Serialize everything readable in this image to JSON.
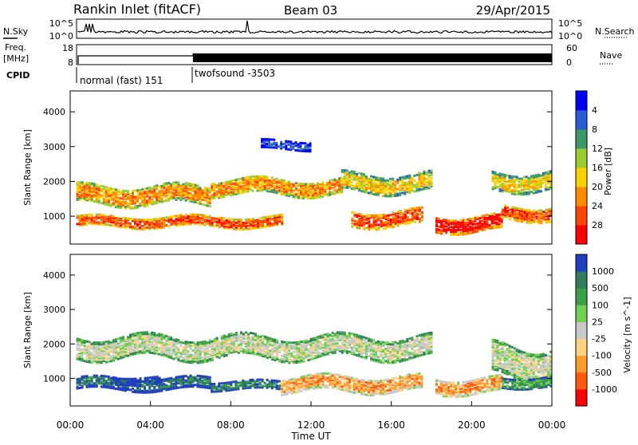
{
  "header": {
    "title": "Rankin Inlet (fitACF)",
    "beam": "Beam 03",
    "date": "29/Apr/2015"
  },
  "top_panels": {
    "nsky_label": "N.Sky",
    "nsearch_label": "N.Search",
    "nsky_ticks": [
      "10^5",
      "10^0"
    ],
    "nsearch_ticks": [
      "10^5",
      "10^0"
    ],
    "freq_label_line1": "Freq.",
    "freq_label_line2": "[MHz]",
    "freq_ticks": [
      "18",
      "8"
    ],
    "nave_label": "Nave",
    "nave_ticks": [
      "60",
      "0"
    ],
    "cpid_label": "CPID",
    "cpid_segments": [
      {
        "name": "normal (fast) 151",
        "start_hour": 0.0,
        "end_hour": 6.0
      },
      {
        "name": "twofsound -3503",
        "start_hour": 6.0,
        "end_hour": 24.0
      }
    ]
  },
  "chart_data": [
    {
      "type": "heatmap",
      "title": "",
      "xlabel": "Time UT",
      "ylabel": "Slant Range [km]",
      "x_ticks": [
        "00:00",
        "04:00",
        "08:00",
        "12:00",
        "16:00",
        "20:00",
        "00:00"
      ],
      "x_range_hours": [
        0,
        24
      ],
      "y_ticks": [
        1000,
        2000,
        3000,
        4000
      ],
      "ylim": [
        200,
        4600
      ],
      "colorbar": {
        "label": "Power [dB]",
        "ticks": [
          "4",
          "8",
          "12",
          "16",
          "20",
          "24",
          "28"
        ],
        "colors": [
          "#0000ff",
          "#2a5ed0",
          "#3c9a6a",
          "#9acd32",
          "#ffd000",
          "#ff8c00",
          "#ff4500",
          "#ff0000"
        ]
      },
      "bands": [
        {
          "t_start": 0.3,
          "t_end": 10.5,
          "r_center": 850,
          "r_width": 300,
          "level": 6
        },
        {
          "t_start": 0.3,
          "t_end": 7.0,
          "r_center": 1600,
          "r_width": 500,
          "level": 5
        },
        {
          "t_start": 7.0,
          "t_end": 13.5,
          "r_center": 1850,
          "r_width": 450,
          "level": 5
        },
        {
          "t_start": 13.5,
          "t_end": 18.0,
          "r_center": 1950,
          "r_width": 500,
          "level": 4
        },
        {
          "t_start": 14.0,
          "t_end": 17.5,
          "r_center": 950,
          "r_width": 450,
          "level": 6
        },
        {
          "t_start": 18.2,
          "t_end": 21.5,
          "r_center": 800,
          "r_width": 450,
          "level": 7
        },
        {
          "t_start": 21.5,
          "t_end": 24.0,
          "r_center": 1100,
          "r_width": 400,
          "level": 6
        },
        {
          "t_start": 21.0,
          "t_end": 24.0,
          "r_center": 2000,
          "r_width": 500,
          "level": 4
        },
        {
          "t_start": 9.5,
          "t_end": 12.0,
          "r_center": 3050,
          "r_width": 250,
          "level": 1
        }
      ]
    },
    {
      "type": "heatmap",
      "title": "",
      "xlabel": "Time UT",
      "ylabel": "Slant Range [km]",
      "x_ticks": [
        "00:00",
        "04:00",
        "08:00",
        "12:00",
        "16:00",
        "20:00",
        "00:00"
      ],
      "x_range_hours": [
        0,
        24
      ],
      "y_ticks": [
        1000,
        2000,
        3000,
        4000
      ],
      "ylim": [
        200,
        4600
      ],
      "colorbar": {
        "label": "Velocity [m s^-1]",
        "ticks": [
          "1000",
          "500",
          "100",
          "25",
          "-25",
          "-100",
          "-500",
          "-1000"
        ],
        "colors": [
          "#1f3fbf",
          "#2e7d5a",
          "#3aa048",
          "#70d050",
          "#c8c8c8",
          "#ffd27f",
          "#ff9a30",
          "#ff5a10",
          "#ff0000"
        ]
      },
      "bands": [
        {
          "t_start": 0.3,
          "t_end": 7.0,
          "r_center": 850,
          "r_width": 350,
          "level": 1
        },
        {
          "t_start": 2.0,
          "t_end": 4.5,
          "r_center": 950,
          "r_width": 200,
          "level": 0
        },
        {
          "t_start": 7.0,
          "t_end": 10.5,
          "r_center": 800,
          "r_width": 250,
          "level": 1
        },
        {
          "t_start": 0.3,
          "t_end": 18.0,
          "r_center": 1900,
          "r_width": 600,
          "level": 4
        },
        {
          "t_start": 10.5,
          "t_end": 17.5,
          "r_center": 850,
          "r_width": 450,
          "level": 6
        },
        {
          "t_start": 18.2,
          "t_end": 21.5,
          "r_center": 800,
          "r_width": 450,
          "level": 6
        },
        {
          "t_start": 21.0,
          "t_end": 24.0,
          "r_center": 1500,
          "r_width": 900,
          "level": 4
        },
        {
          "t_start": 21.5,
          "t_end": 24.0,
          "r_center": 900,
          "r_width": 300,
          "level": 2
        }
      ]
    }
  ]
}
